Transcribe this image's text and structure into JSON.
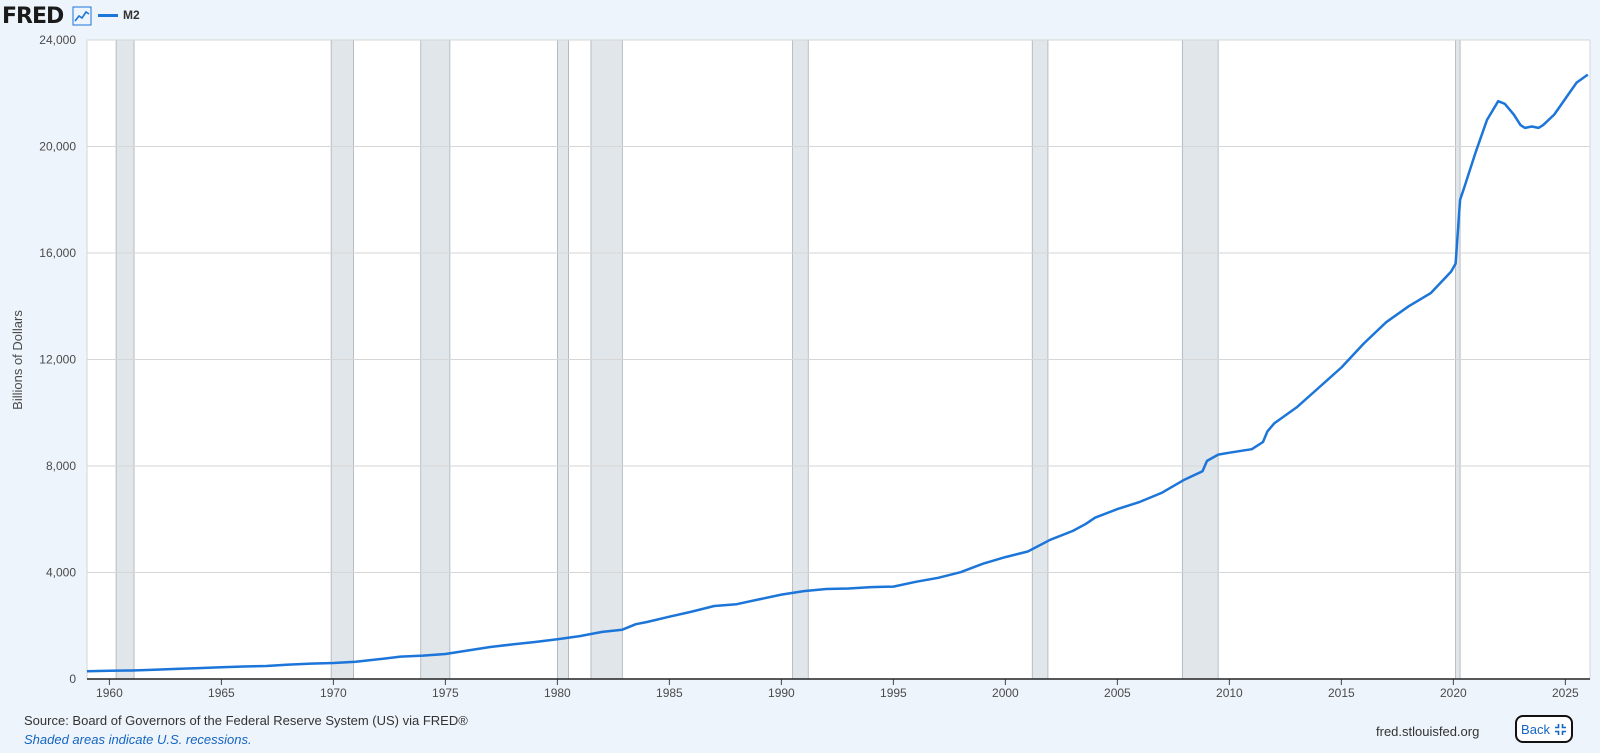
{
  "header": {
    "logo_text": "FRED",
    "logo_icon": "line-chart-icon",
    "legend_label": "M2"
  },
  "colors": {
    "series": "#1c75d8",
    "recession": "#e1e6eb",
    "grid": "#d6d6d6",
    "background": "#eef4fb"
  },
  "chart_data": {
    "type": "line",
    "title": "",
    "xlabel": "",
    "ylabel": "Billions of Dollars",
    "xlim": [
      1959,
      2026.1
    ],
    "ylim": [
      0,
      24000
    ],
    "grid": true,
    "legend": "top-left",
    "x_ticks": [
      "1960",
      "1965",
      "1970",
      "1975",
      "1980",
      "1985",
      "1990",
      "1995",
      "2000",
      "2005",
      "2010",
      "2015",
      "2020",
      "2025"
    ],
    "y_ticks": [
      "0",
      "4,000",
      "8,000",
      "12,000",
      "16,000",
      "20,000",
      "24,000"
    ],
    "recessions": [
      [
        1960.3,
        1961.1
      ],
      [
        1969.9,
        1970.9
      ],
      [
        1973.9,
        1975.2
      ],
      [
        1980.0,
        1980.5
      ],
      [
        1981.5,
        1982.9
      ],
      [
        1990.5,
        1991.2
      ],
      [
        2001.2,
        2001.9
      ],
      [
        2007.9,
        2009.5
      ],
      [
        2020.1,
        2020.3
      ]
    ],
    "series": [
      {
        "name": "M2",
        "x": [
          1959.0,
          1960.0,
          1961.0,
          1962.0,
          1963.0,
          1964.0,
          1965.0,
          1966.0,
          1967.0,
          1968.0,
          1969.0,
          1970.0,
          1971.0,
          1972.0,
          1973.0,
          1974.0,
          1975.0,
          1976.0,
          1977.0,
          1978.0,
          1979.0,
          1980.0,
          1981.0,
          1982.0,
          1982.9,
          1983.5,
          1984.0,
          1985.0,
          1986.0,
          1987.0,
          1988.0,
          1989.0,
          1990.0,
          1991.0,
          1992.0,
          1993.0,
          1994.0,
          1995.0,
          1996.0,
          1997.0,
          1998.0,
          1999.0,
          2000.0,
          2001.0,
          2002.0,
          2003.0,
          2003.6,
          2004.0,
          2005.0,
          2006.0,
          2007.0,
          2008.0,
          2008.8,
          2009.0,
          2009.5,
          2010.0,
          2011.0,
          2011.5,
          2011.7,
          2012.0,
          2013.0,
          2014.0,
          2015.0,
          2016.0,
          2017.0,
          2018.0,
          2019.0,
          2019.9,
          2020.1,
          2020.3,
          2020.5,
          2021.0,
          2021.5,
          2022.0,
          2022.3,
          2022.7,
          2023.0,
          2023.2,
          2023.5,
          2023.8,
          2024.0,
          2024.5,
          2025.0,
          2025.5,
          2026.0
        ],
        "values": [
          290,
          310,
          320,
          350,
          380,
          410,
          440,
          470,
          490,
          540,
          580,
          600,
          650,
          740,
          840,
          880,
          940,
          1070,
          1200,
          1300,
          1390,
          1490,
          1610,
          1770,
          1850,
          2060,
          2140,
          2340,
          2530,
          2740,
          2810,
          2990,
          3170,
          3300,
          3380,
          3400,
          3450,
          3470,
          3650,
          3800,
          4010,
          4330,
          4580,
          4790,
          5230,
          5560,
          5830,
          6060,
          6380,
          6650,
          7000,
          7490,
          7800,
          8190,
          8430,
          8500,
          8630,
          8900,
          9300,
          9600,
          10200,
          10950,
          11700,
          12600,
          13400,
          14000,
          14500,
          15300,
          15600,
          18000,
          18500,
          19800,
          21000,
          21700,
          21600,
          21200,
          20800,
          20700,
          20750,
          20700,
          20800,
          21200,
          21800,
          22400,
          22700
        ]
      }
    ]
  },
  "footer": {
    "source": "Source: Board of Governors of the Federal Reserve System (US) via FRED®",
    "note": "Shaded areas indicate U.S. recessions.",
    "site": "fred.stlouisfed.org",
    "back_label": "Back"
  }
}
